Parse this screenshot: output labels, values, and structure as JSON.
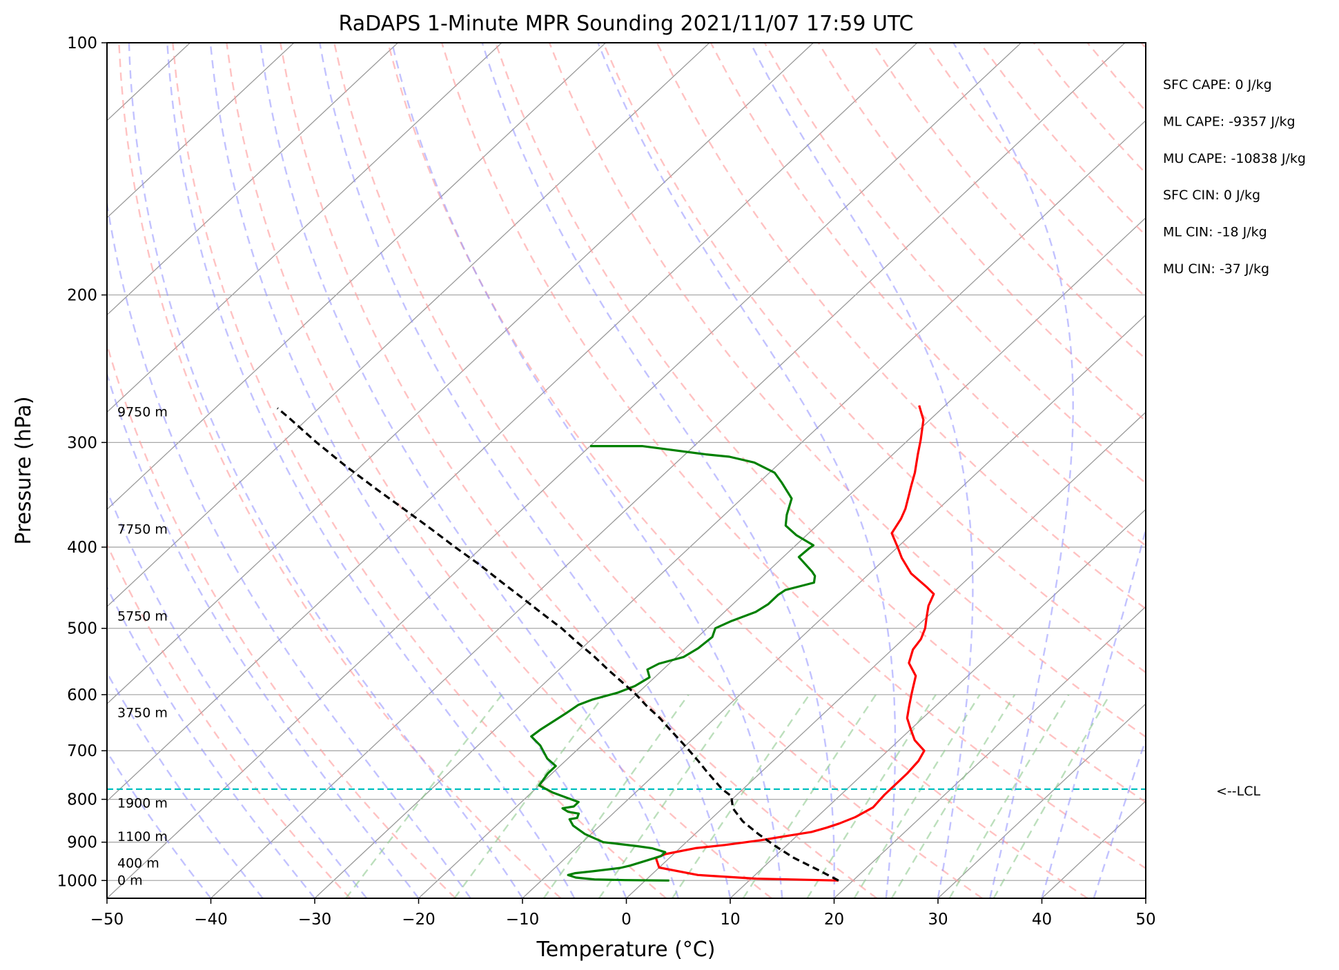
{
  "chart_data": {
    "type": "line",
    "subtype": "skew-T log-p",
    "title": "RaDAPS 1-Minute MPR Sounding 2021/11/07 17:59 UTC",
    "xlabel": "Temperature (°C)",
    "ylabel": "Pressure (hPa)",
    "xlim": [
      -50,
      50
    ],
    "ylim": [
      1050,
      100
    ],
    "y_scale": "log",
    "x_ticks": [
      "−50",
      "−40",
      "−30",
      "−20",
      "−10",
      "0",
      "10",
      "20",
      "30",
      "40",
      "50"
    ],
    "y_ticks": [
      "100",
      "200",
      "300",
      "400",
      "500",
      "600",
      "700",
      "800",
      "900",
      "1000"
    ],
    "grid": true,
    "colors": {
      "temperature": "#ff0000",
      "dewpoint": "#008000",
      "parcel": "#000000",
      "lcl_line": "#00bfbf",
      "dry_adiabats": "#ff9a9a",
      "moist_adiabats": "#8f8fff",
      "mixing_ratio": "#8fc98f",
      "isotherms": "#999999"
    },
    "series": [
      {
        "key": "temperature",
        "points": [
          [
            18.6,
            1000
          ],
          [
            10.5,
            995
          ],
          [
            4.5,
            985
          ],
          [
            0,
            965
          ],
          [
            -1.3,
            940
          ],
          [
            -0.8,
            930
          ],
          [
            1.5,
            915
          ],
          [
            4,
            907
          ],
          [
            7,
            895
          ],
          [
            9,
            885
          ],
          [
            11,
            875
          ],
          [
            12,
            865
          ],
          [
            12.8,
            855
          ],
          [
            13.7,
            840
          ],
          [
            14.4,
            818
          ],
          [
            14.2,
            790
          ],
          [
            14.2,
            745
          ],
          [
            14,
            720
          ],
          [
            13.5,
            700
          ],
          [
            11.5,
            680
          ],
          [
            10,
            660
          ],
          [
            8.5,
            640
          ],
          [
            7.5,
            620
          ],
          [
            6.5,
            600
          ],
          [
            6,
            590
          ],
          [
            5,
            570
          ],
          [
            3,
            550
          ],
          [
            2,
            530
          ],
          [
            1.7,
            515
          ],
          [
            1,
            500
          ],
          [
            0,
            485
          ],
          [
            -1,
            470
          ],
          [
            -1.7,
            455
          ],
          [
            -3,
            447
          ],
          [
            -6,
            430
          ],
          [
            -8.5,
            412
          ],
          [
            -10,
            400
          ],
          [
            -12,
            385
          ],
          [
            -12.6,
            370
          ],
          [
            -13.2,
            360
          ],
          [
            -14,
            350
          ],
          [
            -15,
            338
          ],
          [
            -16,
            326
          ],
          [
            -17.6,
            310
          ],
          [
            -18.8,
            298
          ],
          [
            -20.6,
            282
          ],
          [
            -22.5,
            271
          ]
        ]
      },
      {
        "key": "dewpoint",
        "points": [
          [
            2.3,
            1000
          ],
          [
            -2,
            999
          ],
          [
            -5,
            997
          ],
          [
            -7,
            992
          ],
          [
            -8,
            985
          ],
          [
            -7.5,
            980
          ],
          [
            -6,
            975
          ],
          [
            -3.7,
            966
          ],
          [
            -3,
            960
          ],
          [
            -2.2,
            950
          ],
          [
            -1,
            935
          ],
          [
            -1,
            925
          ],
          [
            -2.7,
            915
          ],
          [
            -4.3,
            910
          ],
          [
            -6.5,
            904
          ],
          [
            -8,
            900
          ],
          [
            -10.6,
            880
          ],
          [
            -12.6,
            860
          ],
          [
            -13.6,
            845
          ],
          [
            -13,
            842
          ],
          [
            -13.3,
            832
          ],
          [
            -14.5,
            828
          ],
          [
            -15.4,
            820
          ],
          [
            -14.5,
            816
          ],
          [
            -14.5,
            806
          ],
          [
            -16,
            797
          ],
          [
            -18,
            785
          ],
          [
            -20,
            770
          ],
          [
            -20.4,
            745
          ],
          [
            -20.4,
            730
          ],
          [
            -22,
            715
          ],
          [
            -24,
            690
          ],
          [
            -25.8,
            673
          ],
          [
            -25.6,
            660
          ],
          [
            -25.2,
            645
          ],
          [
            -24.8,
            630
          ],
          [
            -24.5,
            617
          ],
          [
            -23.7,
            608
          ],
          [
            -22,
            597
          ],
          [
            -21,
            586
          ],
          [
            -20.5,
            572
          ],
          [
            -21.5,
            560
          ],
          [
            -21,
            551
          ],
          [
            -19.3,
            541
          ],
          [
            -18.8,
            528
          ],
          [
            -18.6,
            512
          ],
          [
            -19.2,
            500
          ],
          [
            -18.4,
            490
          ],
          [
            -17,
            478
          ],
          [
            -16.6,
            468
          ],
          [
            -16.6,
            456
          ],
          [
            -16.4,
            450
          ],
          [
            -14.4,
            441
          ],
          [
            -15,
            433
          ],
          [
            -15.7,
            428
          ],
          [
            -18.5,
            411
          ],
          [
            -18.4,
            401
          ],
          [
            -18.3,
            398
          ],
          [
            -21,
            387
          ],
          [
            -23,
            377
          ],
          [
            -24,
            366
          ],
          [
            -25.2,
            350
          ],
          [
            -27.8,
            335
          ],
          [
            -29.5,
            326
          ],
          [
            -32.5,
            317
          ],
          [
            -35.5,
            312
          ],
          [
            -38,
            310
          ],
          [
            -45,
            303
          ],
          [
            -50,
            303
          ]
        ]
      },
      {
        "key": "parcel",
        "points": [
          [
            18.6,
            1000
          ],
          [
            15.4,
            970
          ],
          [
            12,
            940
          ],
          [
            9,
            910
          ],
          [
            6.1,
            880
          ],
          [
            3.3,
            850
          ],
          [
            1,
            820
          ],
          [
            -0.4,
            793
          ],
          [
            -2,
            778
          ],
          [
            -3.6,
            760
          ],
          [
            -5.4,
            740
          ],
          [
            -7.2,
            720
          ],
          [
            -9.1,
            700
          ],
          [
            -11.1,
            680
          ],
          [
            -13.2,
            660
          ],
          [
            -15.3,
            640
          ],
          [
            -17.7,
            620
          ],
          [
            -20,
            600
          ],
          [
            -22.6,
            580
          ],
          [
            -25.3,
            560
          ],
          [
            -28,
            540
          ],
          [
            -31,
            520
          ],
          [
            -34,
            500
          ],
          [
            -37.4,
            480
          ],
          [
            -40.9,
            460
          ],
          [
            -44.6,
            440
          ],
          [
            -48.4,
            420
          ],
          [
            -52.6,
            400
          ],
          [
            -56.9,
            380
          ],
          [
            -61.5,
            360
          ],
          [
            -66.4,
            340
          ],
          [
            -71.5,
            320
          ],
          [
            -76.7,
            300
          ],
          [
            -82,
            280
          ],
          [
            -84,
            273
          ]
        ]
      }
    ],
    "lcl_pressure": 778,
    "lcl_label": "<--LCL",
    "height_labels": [
      {
        "label": "0 m",
        "p": 1000
      },
      {
        "label": "400 m",
        "p": 954
      },
      {
        "label": "1100 m",
        "p": 887
      },
      {
        "label": "1900 m",
        "p": 809
      },
      {
        "label": "3750 m",
        "p": 631
      },
      {
        "label": "5750 m",
        "p": 484
      },
      {
        "label": "7750 m",
        "p": 381
      },
      {
        "label": "9750 m",
        "p": 276
      }
    ],
    "annotations": [
      "SFC CAPE: 0 J/kg",
      "ML CAPE: -9357 J/kg",
      "MU CAPE: -10838 J/kg",
      "SFC CIN: 0 J/kg",
      "ML CIN: -18 J/kg",
      "MU CIN: -37 J/kg"
    ]
  }
}
